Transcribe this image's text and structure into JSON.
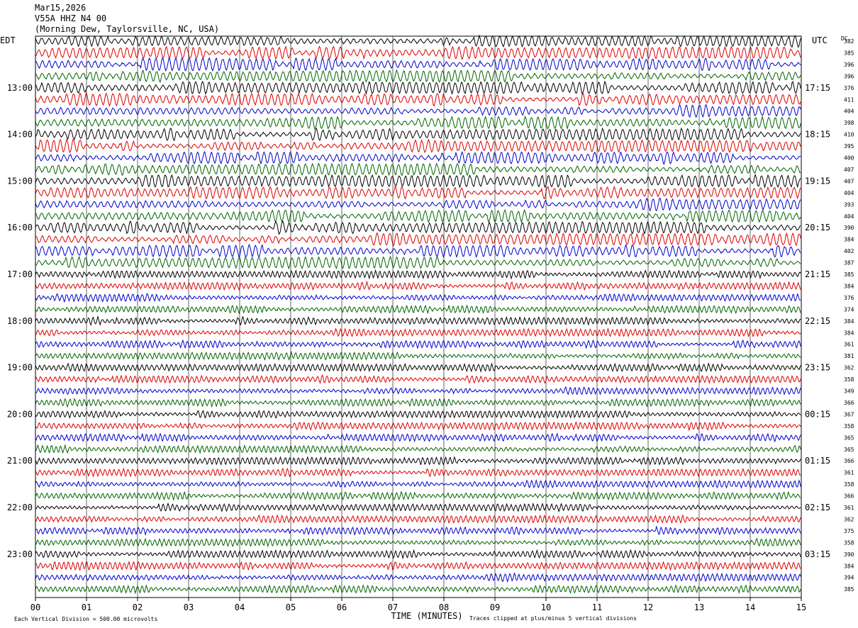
{
  "header": {
    "date": "Mar15,2026",
    "station": "V55A HHZ N4 00",
    "location": "(Morning Dew, Taylorsville, NC, USA)"
  },
  "chart_data": {
    "type": "line",
    "title": "",
    "left_axis_label": "EDT",
    "right_axis_label": "UTC",
    "dc_label": "DC",
    "xlabel": "TIME (MINUTES)",
    "x_ticks": [
      "00",
      "01",
      "02",
      "03",
      "04",
      "05",
      "06",
      "07",
      "08",
      "09",
      "10",
      "11",
      "12",
      "13",
      "14",
      "15"
    ],
    "xlim": [
      0,
      15
    ],
    "left_hour_labels": [
      "13:00",
      "14:00",
      "15:00",
      "16:00",
      "17:00",
      "18:00",
      "19:00",
      "20:00",
      "21:00",
      "22:00",
      "23:00"
    ],
    "right_hour_labels": [
      "17:15",
      "18:15",
      "19:15",
      "20:15",
      "21:15",
      "22:15",
      "23:15",
      "00:15",
      "01:15",
      "02:15",
      "03:15"
    ],
    "trace_colors": [
      "#000000",
      "#dd0000",
      "#0000cc",
      "#006400"
    ],
    "dc_offsets": [
      382,
      385,
      396,
      396,
      376,
      411,
      404,
      398,
      410,
      395,
      400,
      407,
      407,
      404,
      393,
      404,
      390,
      384,
      402,
      387,
      385,
      384,
      376,
      374,
      384,
      384,
      361,
      381,
      362,
      358,
      349,
      366,
      367,
      358,
      365,
      365,
      366,
      361,
      358,
      366,
      361,
      362,
      375,
      358,
      390,
      384,
      394,
      385
    ],
    "footer_scale": "Each Vertical Division =  500.00 microvolts",
    "footer_clip": "Traces clipped at plus/minus 5 vertical divisions",
    "grid": "vertical minute lines"
  }
}
